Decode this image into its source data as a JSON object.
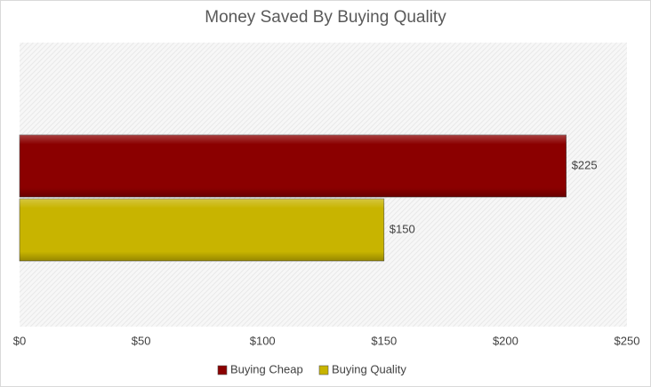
{
  "chart_data": {
    "type": "bar",
    "orientation": "horizontal",
    "title": "Money Saved By Buying Quality",
    "categories": [
      null
    ],
    "series": [
      {
        "name": "Buying Cheap",
        "color": "#8b0000",
        "values": [
          225
        ],
        "value_labels": [
          "$225"
        ]
      },
      {
        "name": "Buying Quality",
        "color": "#c8b400",
        "values": [
          150
        ],
        "value_labels": [
          "$150"
        ]
      }
    ],
    "xlim": [
      0,
      250
    ],
    "xticks": [
      {
        "value": 0,
        "label": "$0"
      },
      {
        "value": 50,
        "label": "$50"
      },
      {
        "value": 100,
        "label": "$100"
      },
      {
        "value": 150,
        "label": "$150"
      },
      {
        "value": 200,
        "label": "$200"
      },
      {
        "value": 250,
        "label": "$250"
      }
    ],
    "legend": "bottom"
  }
}
